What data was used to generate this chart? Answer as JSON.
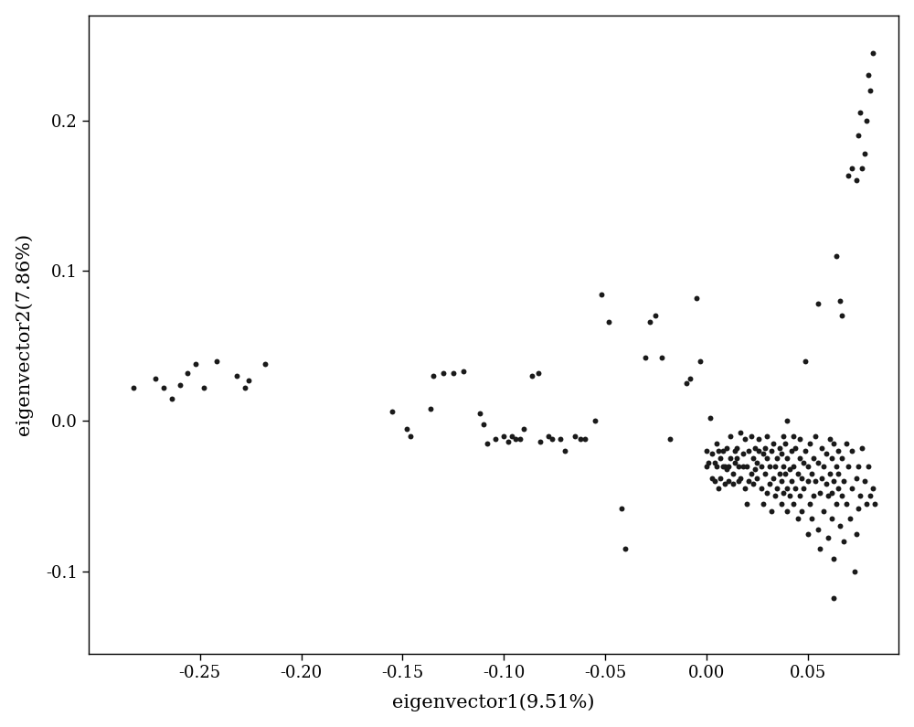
{
  "xlabel": "eigenvector1(9.51%)",
  "ylabel": "eigenvector2(7.86%)",
  "xlim": [
    -0.305,
    0.095
  ],
  "ylim": [
    -0.155,
    0.27
  ],
  "xticks": [
    -0.25,
    -0.2,
    -0.15,
    -0.1,
    -0.05,
    0.0,
    0.05
  ],
  "yticks": [
    -0.1,
    0.0,
    0.1,
    0.2
  ],
  "background_color": "#ffffff",
  "marker_color": "#1a1a1a",
  "marker_size": 18,
  "points": [
    [
      -0.283,
      0.022
    ],
    [
      -0.272,
      0.028
    ],
    [
      -0.268,
      0.022
    ],
    [
      -0.264,
      0.015
    ],
    [
      -0.26,
      0.024
    ],
    [
      -0.256,
      0.032
    ],
    [
      -0.252,
      0.038
    ],
    [
      -0.248,
      0.022
    ],
    [
      -0.242,
      0.04
    ],
    [
      -0.232,
      0.03
    ],
    [
      -0.228,
      0.022
    ],
    [
      -0.226,
      0.027
    ],
    [
      -0.218,
      0.038
    ],
    [
      -0.155,
      0.006
    ],
    [
      -0.148,
      -0.005
    ],
    [
      -0.146,
      -0.01
    ],
    [
      -0.136,
      0.008
    ],
    [
      -0.135,
      0.03
    ],
    [
      -0.13,
      0.032
    ],
    [
      -0.125,
      0.032
    ],
    [
      -0.12,
      0.033
    ],
    [
      -0.112,
      0.005
    ],
    [
      -0.11,
      -0.002
    ],
    [
      -0.108,
      -0.015
    ],
    [
      -0.104,
      -0.012
    ],
    [
      -0.1,
      -0.01
    ],
    [
      -0.098,
      -0.014
    ],
    [
      -0.096,
      -0.01
    ],
    [
      -0.094,
      -0.012
    ],
    [
      -0.092,
      -0.012
    ],
    [
      -0.09,
      -0.005
    ],
    [
      -0.086,
      0.03
    ],
    [
      -0.083,
      0.032
    ],
    [
      -0.082,
      -0.014
    ],
    [
      -0.078,
      -0.01
    ],
    [
      -0.076,
      -0.012
    ],
    [
      -0.072,
      -0.012
    ],
    [
      -0.07,
      -0.02
    ],
    [
      -0.065,
      -0.01
    ],
    [
      -0.062,
      -0.012
    ],
    [
      -0.06,
      -0.012
    ],
    [
      -0.055,
      0.0
    ],
    [
      -0.052,
      0.084
    ],
    [
      -0.048,
      0.066
    ],
    [
      -0.042,
      -0.058
    ],
    [
      -0.04,
      -0.085
    ],
    [
      -0.03,
      0.042
    ],
    [
      -0.028,
      0.066
    ],
    [
      -0.025,
      0.07
    ],
    [
      -0.022,
      0.042
    ],
    [
      -0.018,
      -0.012
    ],
    [
      -0.01,
      0.025
    ],
    [
      -0.008,
      0.028
    ],
    [
      -0.005,
      0.082
    ],
    [
      -0.003,
      0.04
    ],
    [
      -0.0,
      -0.03
    ],
    [
      0.0,
      -0.02
    ],
    [
      0.001,
      -0.028
    ],
    [
      0.002,
      0.002
    ],
    [
      0.003,
      -0.022
    ],
    [
      0.003,
      -0.038
    ],
    [
      0.004,
      -0.028
    ],
    [
      0.004,
      -0.04
    ],
    [
      0.005,
      -0.03
    ],
    [
      0.005,
      -0.015
    ],
    [
      0.006,
      -0.02
    ],
    [
      0.006,
      -0.045
    ],
    [
      0.007,
      -0.025
    ],
    [
      0.007,
      -0.038
    ],
    [
      0.008,
      -0.03
    ],
    [
      0.008,
      -0.02
    ],
    [
      0.009,
      -0.03
    ],
    [
      0.009,
      -0.042
    ],
    [
      0.01,
      -0.032
    ],
    [
      0.01,
      -0.018
    ],
    [
      0.011,
      -0.03
    ],
    [
      0.011,
      -0.04
    ],
    [
      0.012,
      -0.01
    ],
    [
      0.012,
      -0.025
    ],
    [
      0.013,
      -0.035
    ],
    [
      0.013,
      -0.042
    ],
    [
      0.014,
      -0.02
    ],
    [
      0.014,
      -0.028
    ],
    [
      0.015,
      -0.025
    ],
    [
      0.015,
      -0.018
    ],
    [
      0.016,
      -0.03
    ],
    [
      0.016,
      -0.04
    ],
    [
      0.017,
      -0.008
    ],
    [
      0.017,
      -0.038
    ],
    [
      0.018,
      -0.022
    ],
    [
      0.018,
      -0.03
    ],
    [
      0.019,
      -0.012
    ],
    [
      0.019,
      -0.045
    ],
    [
      0.02,
      -0.055
    ],
    [
      0.02,
      -0.03
    ],
    [
      0.021,
      -0.02
    ],
    [
      0.021,
      -0.04
    ],
    [
      0.022,
      -0.01
    ],
    [
      0.022,
      -0.035
    ],
    [
      0.023,
      -0.025
    ],
    [
      0.023,
      -0.042
    ],
    [
      0.024,
      -0.018
    ],
    [
      0.024,
      -0.032
    ],
    [
      0.025,
      -0.028
    ],
    [
      0.025,
      -0.038
    ],
    [
      0.026,
      -0.02
    ],
    [
      0.026,
      -0.012
    ],
    [
      0.027,
      -0.045
    ],
    [
      0.027,
      -0.03
    ],
    [
      0.028,
      -0.055
    ],
    [
      0.028,
      -0.022
    ],
    [
      0.029,
      -0.035
    ],
    [
      0.029,
      -0.018
    ],
    [
      0.03,
      -0.048
    ],
    [
      0.03,
      -0.025
    ],
    [
      0.03,
      -0.01
    ],
    [
      0.031,
      -0.03
    ],
    [
      0.031,
      -0.042
    ],
    [
      0.032,
      -0.06
    ],
    [
      0.032,
      -0.02
    ],
    [
      0.033,
      -0.038
    ],
    [
      0.033,
      -0.015
    ],
    [
      0.034,
      -0.03
    ],
    [
      0.034,
      -0.05
    ],
    [
      0.035,
      -0.025
    ],
    [
      0.035,
      -0.045
    ],
    [
      0.036,
      -0.018
    ],
    [
      0.036,
      -0.035
    ],
    [
      0.037,
      -0.055
    ],
    [
      0.037,
      -0.022
    ],
    [
      0.037,
      -0.04
    ],
    [
      0.038,
      -0.01
    ],
    [
      0.038,
      -0.03
    ],
    [
      0.038,
      -0.048
    ],
    [
      0.039,
      -0.015
    ],
    [
      0.039,
      -0.035
    ],
    [
      0.04,
      -0.025
    ],
    [
      0.04,
      -0.045
    ],
    [
      0.04,
      -0.06
    ],
    [
      0.04,
      0.0
    ],
    [
      0.041,
      -0.032
    ],
    [
      0.041,
      -0.05
    ],
    [
      0.042,
      -0.02
    ],
    [
      0.042,
      -0.04
    ],
    [
      0.043,
      -0.01
    ],
    [
      0.043,
      -0.055
    ],
    [
      0.043,
      -0.03
    ],
    [
      0.044,
      -0.045
    ],
    [
      0.044,
      -0.018
    ],
    [
      0.045,
      -0.035
    ],
    [
      0.045,
      -0.065
    ],
    [
      0.046,
      -0.025
    ],
    [
      0.046,
      -0.05
    ],
    [
      0.046,
      -0.012
    ],
    [
      0.047,
      -0.038
    ],
    [
      0.047,
      -0.06
    ],
    [
      0.048,
      -0.028
    ],
    [
      0.048,
      -0.045
    ],
    [
      0.049,
      0.04
    ],
    [
      0.049,
      -0.02
    ],
    [
      0.05,
      -0.04
    ],
    [
      0.05,
      -0.075
    ],
    [
      0.05,
      -0.03
    ],
    [
      0.051,
      -0.055
    ],
    [
      0.051,
      -0.015
    ],
    [
      0.052,
      -0.035
    ],
    [
      0.052,
      -0.065
    ],
    [
      0.053,
      -0.025
    ],
    [
      0.053,
      -0.05
    ],
    [
      0.054,
      -0.01
    ],
    [
      0.054,
      -0.04
    ],
    [
      0.055,
      -0.072
    ],
    [
      0.055,
      0.078
    ],
    [
      0.055,
      -0.028
    ],
    [
      0.056,
      -0.048
    ],
    [
      0.056,
      -0.085
    ],
    [
      0.057,
      -0.018
    ],
    [
      0.057,
      -0.038
    ],
    [
      0.058,
      -0.03
    ],
    [
      0.058,
      -0.06
    ],
    [
      0.059,
      -0.022
    ],
    [
      0.059,
      -0.042
    ],
    [
      0.06,
      -0.078
    ],
    [
      0.06,
      -0.05
    ],
    [
      0.061,
      -0.012
    ],
    [
      0.061,
      -0.035
    ],
    [
      0.062,
      -0.065
    ],
    [
      0.062,
      -0.025
    ],
    [
      0.062,
      -0.048
    ],
    [
      0.063,
      -0.092
    ],
    [
      0.063,
      -0.015
    ],
    [
      0.063,
      -0.04
    ],
    [
      0.063,
      -0.118
    ],
    [
      0.064,
      -0.03
    ],
    [
      0.064,
      -0.055
    ],
    [
      0.064,
      0.11
    ],
    [
      0.065,
      -0.02
    ],
    [
      0.065,
      -0.045
    ],
    [
      0.065,
      -0.035
    ],
    [
      0.066,
      -0.07
    ],
    [
      0.066,
      0.08
    ],
    [
      0.067,
      -0.025
    ],
    [
      0.067,
      -0.05
    ],
    [
      0.067,
      0.07
    ],
    [
      0.068,
      -0.04
    ],
    [
      0.068,
      -0.08
    ],
    [
      0.069,
      -0.015
    ],
    [
      0.069,
      -0.055
    ],
    [
      0.07,
      0.163
    ],
    [
      0.07,
      -0.03
    ],
    [
      0.071,
      -0.065
    ],
    [
      0.072,
      -0.045
    ],
    [
      0.072,
      0.168
    ],
    [
      0.072,
      -0.02
    ],
    [
      0.073,
      -0.1
    ],
    [
      0.074,
      -0.038
    ],
    [
      0.074,
      -0.075
    ],
    [
      0.074,
      0.16
    ],
    [
      0.075,
      -0.03
    ],
    [
      0.075,
      -0.058
    ],
    [
      0.075,
      0.19
    ],
    [
      0.076,
      -0.05
    ],
    [
      0.076,
      0.205
    ],
    [
      0.077,
      -0.018
    ],
    [
      0.077,
      0.168
    ],
    [
      0.078,
      -0.04
    ],
    [
      0.078,
      0.178
    ],
    [
      0.079,
      -0.055
    ],
    [
      0.079,
      0.2
    ],
    [
      0.08,
      -0.03
    ],
    [
      0.08,
      0.23
    ],
    [
      0.081,
      -0.05
    ],
    [
      0.081,
      0.22
    ],
    [
      0.082,
      -0.045
    ],
    [
      0.082,
      0.245
    ],
    [
      0.083,
      -0.055
    ]
  ]
}
